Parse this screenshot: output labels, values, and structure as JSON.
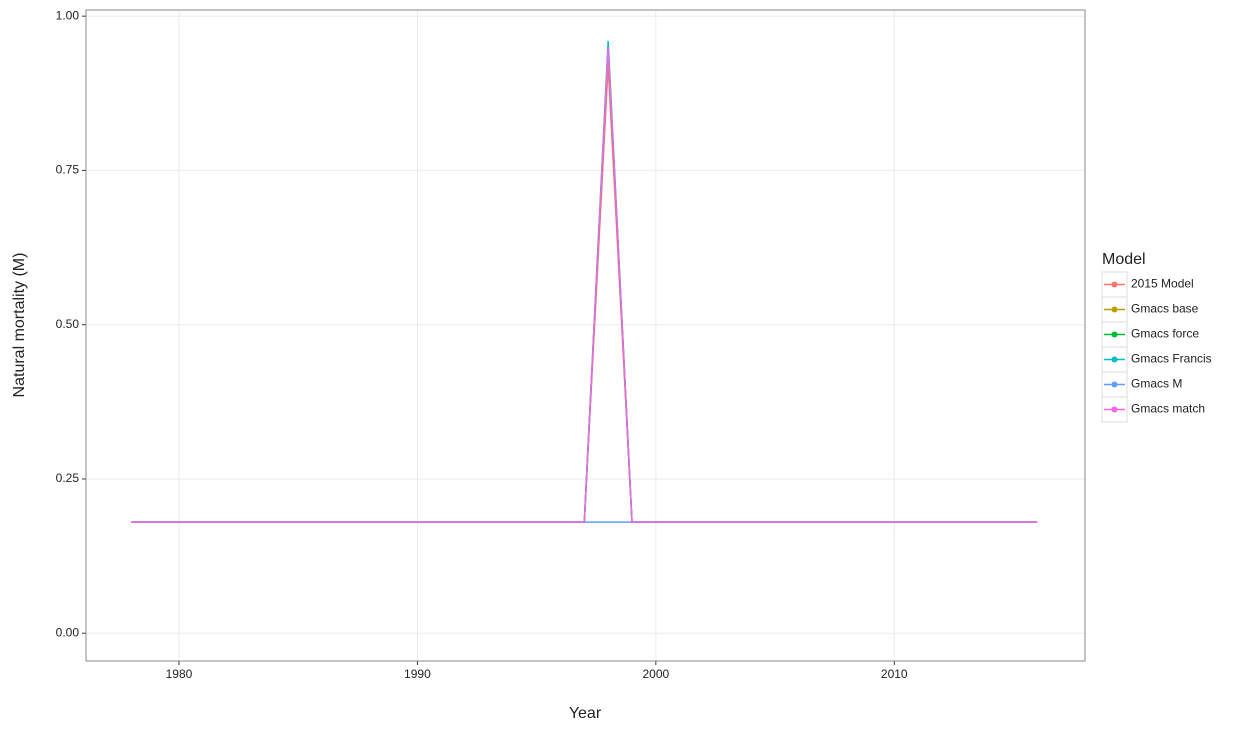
{
  "chart_data": {
    "type": "line",
    "x_label": "Year",
    "y_label": "Natural mortality (M)",
    "legend_title": "Model",
    "x": [
      1978,
      1979,
      1980,
      1981,
      1982,
      1983,
      1984,
      1985,
      1986,
      1987,
      1988,
      1989,
      1990,
      1991,
      1992,
      1993,
      1994,
      1995,
      1996,
      1997,
      1998,
      1999,
      2000,
      2001,
      2002,
      2003,
      2004,
      2005,
      2006,
      2007,
      2008,
      2009,
      2010,
      2011,
      2012,
      2013,
      2014,
      2015,
      2016
    ],
    "series": [
      {
        "name": "2015 Model",
        "color": "#f8766d",
        "values": [
          0.18,
          0.18,
          0.18,
          0.18,
          0.18,
          0.18,
          0.18,
          0.18,
          0.18,
          0.18,
          0.18,
          0.18,
          0.18,
          0.18,
          0.18,
          0.18,
          0.18,
          0.18,
          0.18,
          0.18,
          0.92,
          0.18,
          0.18,
          0.18,
          0.18,
          0.18,
          0.18,
          0.18,
          0.18,
          0.18,
          0.18,
          0.18,
          0.18,
          0.18,
          0.18,
          0.18,
          0.18,
          0.18,
          0.18
        ]
      },
      {
        "name": "Gmacs base",
        "color": "#b79f00",
        "values": [
          0.18,
          0.18,
          0.18,
          0.18,
          0.18,
          0.18,
          0.18,
          0.18,
          0.18,
          0.18,
          0.18,
          0.18,
          0.18,
          0.18,
          0.18,
          0.18,
          0.18,
          0.18,
          0.18,
          0.18,
          0.95,
          0.18,
          0.18,
          0.18,
          0.18,
          0.18,
          0.18,
          0.18,
          0.18,
          0.18,
          0.18,
          0.18,
          0.18,
          0.18,
          0.18,
          0.18,
          0.18,
          0.18,
          0.18
        ]
      },
      {
        "name": "Gmacs force",
        "color": "#00ba38",
        "values": [
          0.18,
          0.18,
          0.18,
          0.18,
          0.18,
          0.18,
          0.18,
          0.18,
          0.18,
          0.18,
          0.18,
          0.18,
          0.18,
          0.18,
          0.18,
          0.18,
          0.18,
          0.18,
          0.18,
          0.18,
          0.95,
          0.18,
          0.18,
          0.18,
          0.18,
          0.18,
          0.18,
          0.18,
          0.18,
          0.18,
          0.18,
          0.18,
          0.18,
          0.18,
          0.18,
          0.18,
          0.18,
          0.18,
          0.18
        ]
      },
      {
        "name": "Gmacs Francis",
        "color": "#00bfc4",
        "values": [
          0.18,
          0.18,
          0.18,
          0.18,
          0.18,
          0.18,
          0.18,
          0.18,
          0.18,
          0.18,
          0.18,
          0.18,
          0.18,
          0.18,
          0.18,
          0.18,
          0.18,
          0.18,
          0.18,
          0.18,
          0.96,
          0.18,
          0.18,
          0.18,
          0.18,
          0.18,
          0.18,
          0.18,
          0.18,
          0.18,
          0.18,
          0.18,
          0.18,
          0.18,
          0.18,
          0.18,
          0.18,
          0.18,
          0.18
        ]
      },
      {
        "name": "Gmacs M",
        "color": "#619cff",
        "values": [
          0.18,
          0.18,
          0.18,
          0.18,
          0.18,
          0.18,
          0.18,
          0.18,
          0.18,
          0.18,
          0.18,
          0.18,
          0.18,
          0.18,
          0.18,
          0.18,
          0.18,
          0.18,
          0.18,
          0.18,
          0.18,
          0.18,
          0.18,
          0.18,
          0.18,
          0.18,
          0.18,
          0.18,
          0.18,
          0.18,
          0.18,
          0.18,
          0.18,
          0.18,
          0.18,
          0.18,
          0.18,
          0.18,
          0.18
        ]
      },
      {
        "name": "Gmacs match",
        "color": "#f564e3",
        "values": [
          0.18,
          0.18,
          0.18,
          0.18,
          0.18,
          0.18,
          0.18,
          0.18,
          0.18,
          0.18,
          0.18,
          0.18,
          0.18,
          0.18,
          0.18,
          0.18,
          0.18,
          0.18,
          0.18,
          0.18,
          0.95,
          0.18,
          0.18,
          0.18,
          0.18,
          0.18,
          0.18,
          0.18,
          0.18,
          0.18,
          0.18,
          0.18,
          0.18,
          0.18,
          0.18,
          0.18,
          0.18,
          0.18,
          0.18
        ]
      }
    ],
    "xlim": [
      1976.1,
      2018
    ],
    "ylim": [
      -0.045,
      1.01
    ],
    "xticks": [
      1980,
      1990,
      2000,
      2010
    ],
    "yticks": [
      {
        "value": 0,
        "label": "0.00"
      },
      {
        "value": 0.25,
        "label": "0.25"
      },
      {
        "value": 0.5,
        "label": "0.50"
      },
      {
        "value": 0.75,
        "label": "0.75"
      },
      {
        "value": 1,
        "label": "1.00"
      }
    ],
    "grid": true,
    "legend_position": "right"
  }
}
